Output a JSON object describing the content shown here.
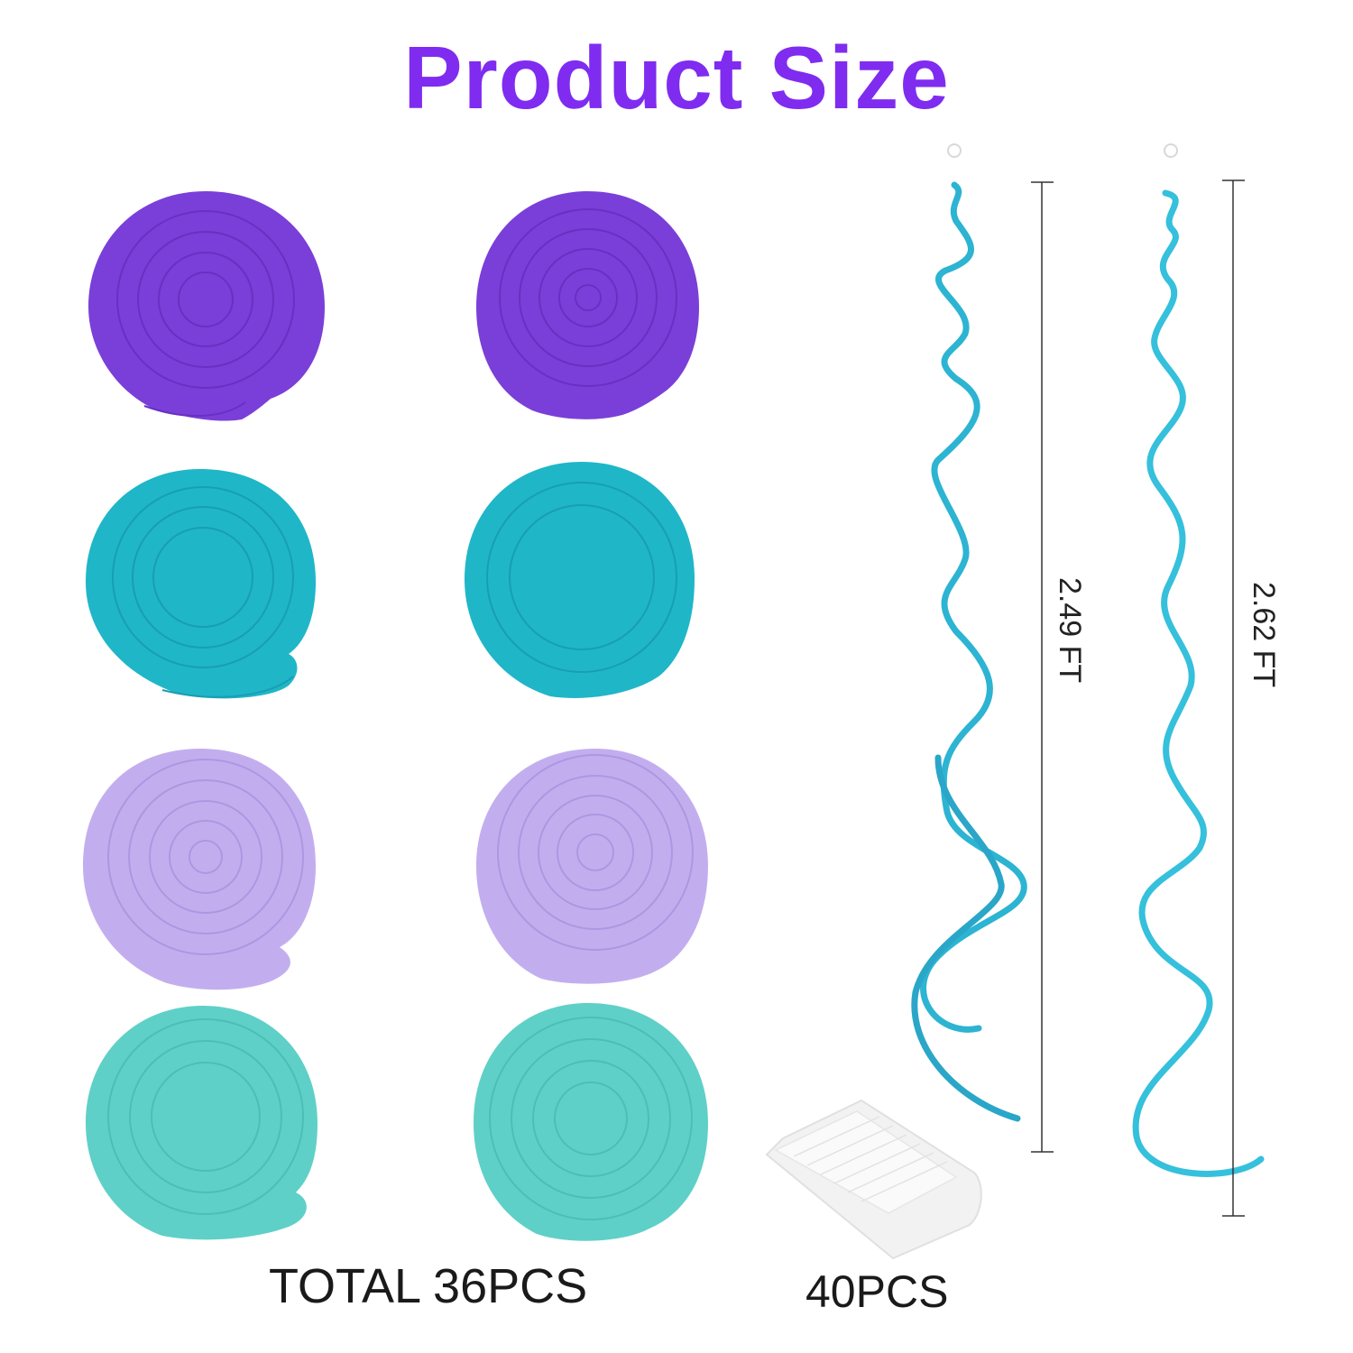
{
  "title": "Product Size",
  "colors": {
    "title": "#7f2cf0",
    "purple": "#7a3fd8",
    "teal": "#1fb6c8",
    "lavender": "#c2aeef",
    "aqua": "#5fd0c7",
    "streamer": "#2cb4d2"
  },
  "swirls": [
    {
      "name": "purple-swirl-1",
      "color": "purple"
    },
    {
      "name": "purple-swirl-2",
      "color": "purple"
    },
    {
      "name": "teal-swirl-1",
      "color": "teal"
    },
    {
      "name": "teal-swirl-2",
      "color": "teal"
    },
    {
      "name": "lavender-swirl-1",
      "color": "lavender"
    },
    {
      "name": "lavender-swirl-2",
      "color": "lavender"
    },
    {
      "name": "aqua-swirl-1",
      "color": "aqua"
    },
    {
      "name": "aqua-swirl-2",
      "color": "aqua"
    }
  ],
  "dimensions": {
    "streamer_1": "2.49 FT",
    "streamer_2": "2.62 FT"
  },
  "captions": {
    "total": "TOTAL 36PCS",
    "hooks": "40PCS"
  }
}
